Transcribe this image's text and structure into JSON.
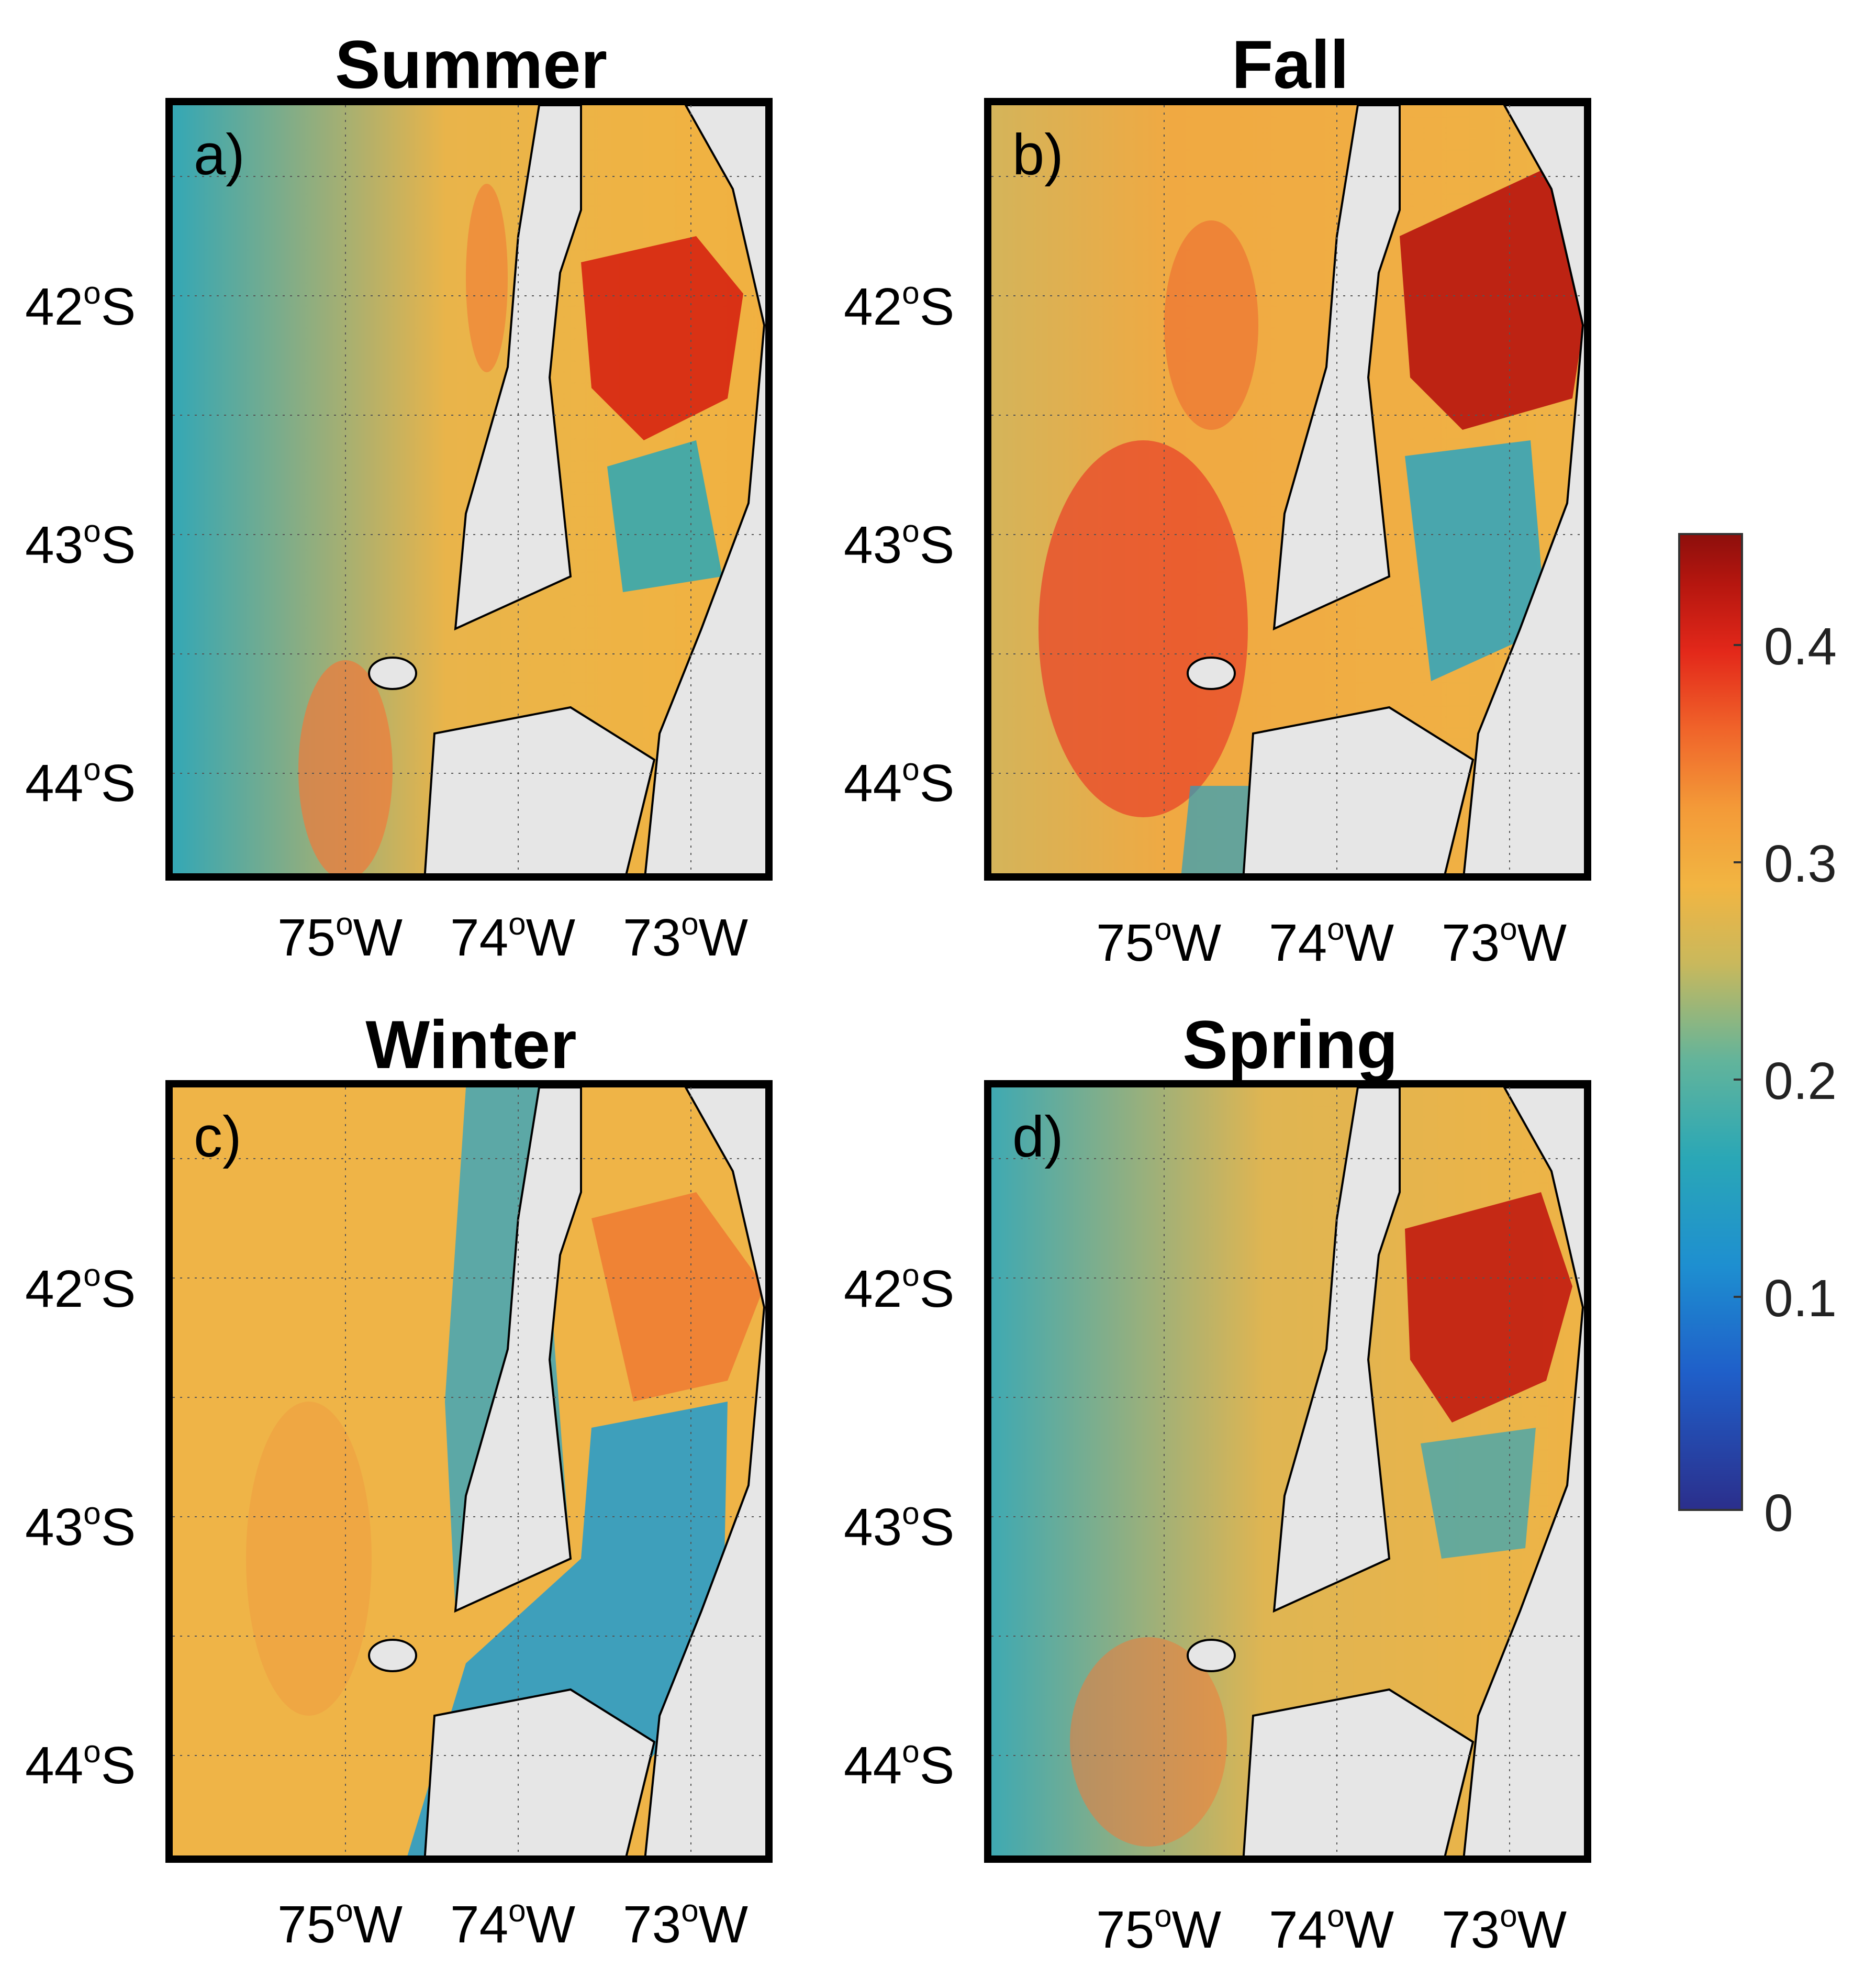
{
  "panels": [
    {
      "title": "Summer",
      "label": "a)"
    },
    {
      "title": "Fall",
      "label": "b)"
    },
    {
      "title": "Winter",
      "label": "c)"
    },
    {
      "title": "Spring",
      "label": "d)"
    }
  ],
  "lat_labels": [
    "42",
    "43",
    "44"
  ],
  "lat_suffix": "S",
  "lon_labels": [
    "75",
    "74",
    "73"
  ],
  "lon_suffix": "W",
  "degree_symbol": "o",
  "colorbar": {
    "ticks": [
      "0.4",
      "0.3",
      "0.2",
      "0.1",
      "0"
    ],
    "min": 0,
    "max": 0.45
  },
  "colors": {
    "land": "#e6e6e6",
    "ocean_low": "#2aa7b6",
    "ocean_mid": "#f2b542",
    "ocean_high": "#d3200f"
  }
}
